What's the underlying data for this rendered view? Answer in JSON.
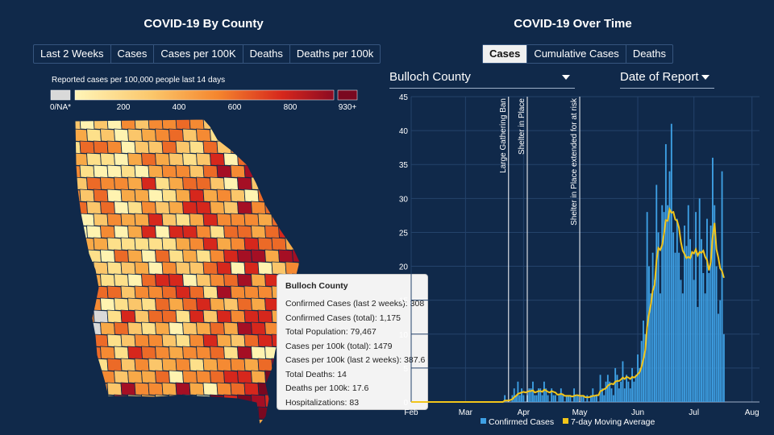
{
  "left_panel": {
    "title": "COVID-19 By County",
    "buttons": [
      "Last 2 Weeks",
      "Cases",
      "Cases per 100K",
      "Deaths",
      "Deaths per 100k"
    ],
    "legend": {
      "title": "Reported cases per 100,000 people last 14 days",
      "na_label": "0/NA*",
      "ticks": [
        "200",
        "400",
        "600",
        "800"
      ],
      "max_label": "930+",
      "colors": {
        "na": "#d9d9d9",
        "low": "#fff3b0",
        "mid": "#f7a43a",
        "high": "#d6271c",
        "max": "#7a0820"
      }
    },
    "tooltip": {
      "title": "Bulloch County",
      "lines": [
        "Confirmed Cases (last 2 weeks): 308",
        "Confirmed Cases (total): 1,175",
        "Total Population: 79,467",
        "Cases per 100k (total): 1479",
        "Cases per 100k (last 2 weeks): 387.6",
        "Total Deaths: 14",
        "Deaths per 100k: 17.6",
        "Hospitalizations: 83"
      ]
    }
  },
  "right_panel": {
    "title": "COVID-19 Over Time",
    "tabs": [
      {
        "label": "Cases",
        "active": true
      },
      {
        "label": "Cumulative Cases",
        "active": false
      },
      {
        "label": "Deaths",
        "active": false
      }
    ],
    "county_select": "Bulloch County",
    "date_select": "Date of Report"
  },
  "chart_data": {
    "type": "bar",
    "ylim": [
      0,
      45
    ],
    "yticks": [
      0,
      5,
      10,
      15,
      20,
      25,
      30,
      35,
      40,
      45
    ],
    "xticks": [
      "Feb",
      "Mar",
      "Apr",
      "May",
      "Jun",
      "Jul",
      "Aug"
    ],
    "x_range": [
      "2020-02-01",
      "2020-08-05"
    ],
    "grid": true,
    "legend_position": "bottom",
    "annotations": [
      {
        "label": "Large Gathering Ban",
        "date": "2020-03-24"
      },
      {
        "label": "Shelter in Place",
        "date": "2020-04-03"
      },
      {
        "label": "Shelter in Place extended for at risk",
        "date": "2020-05-01"
      }
    ],
    "series": [
      {
        "name": "Confirmed Cases",
        "color": "#3ea0e4",
        "x_start": "2020-03-20",
        "values": [
          0,
          0,
          1,
          0,
          0,
          0,
          1,
          2,
          1,
          3,
          1,
          2,
          1,
          0,
          1,
          2,
          2,
          3,
          1,
          1,
          2,
          2,
          1,
          3,
          2,
          1,
          0,
          2,
          1,
          1,
          0,
          1,
          2,
          1,
          0,
          1,
          1,
          1,
          0,
          2,
          1,
          1,
          0,
          1,
          1,
          0,
          1,
          0,
          1,
          2,
          1,
          1,
          0,
          4,
          2,
          1,
          3,
          4,
          3,
          2,
          1,
          5,
          4,
          2,
          3,
          6,
          2,
          4,
          3,
          2,
          5,
          3,
          4,
          7,
          5,
          9,
          12,
          10,
          28,
          20,
          16,
          22,
          18,
          32,
          25,
          16,
          29,
          28,
          38,
          29,
          34,
          41,
          25,
          22,
          27,
          22,
          18,
          16,
          26,
          23,
          29,
          24,
          22,
          18,
          28,
          14,
          30,
          24,
          19,
          16,
          27,
          19,
          26,
          36,
          29,
          20,
          13,
          15,
          34,
          10
        ]
      },
      {
        "name": "7-day Moving Average",
        "color": "#f2c51a",
        "x_start": "2020-03-20",
        "values": [
          0,
          0,
          0.2,
          0.2,
          0.2,
          0.3,
          0.4,
          0.7,
          0.9,
          1.2,
          1.3,
          1.4,
          1.5,
          1.4,
          1.5,
          1.6,
          1.6,
          1.7,
          1.4,
          1.5,
          1.6,
          1.6,
          1.5,
          1.8,
          1.7,
          1.5,
          1.4,
          1.6,
          1.5,
          1.4,
          1.1,
          1.1,
          1.2,
          1.1,
          0.9,
          0.9,
          0.9,
          0.9,
          0.8,
          0.9,
          1,
          1,
          0.9,
          0.9,
          0.9,
          0.7,
          0.7,
          0.7,
          0.8,
          0.9,
          0.9,
          1,
          1,
          1.6,
          1.7,
          1.9,
          2,
          2.4,
          2.6,
          2.7,
          2.6,
          3,
          3.1,
          3.1,
          3.3,
          3.6,
          3.4,
          3.7,
          3.6,
          3.4,
          3.7,
          3.6,
          3.8,
          4.1,
          4.4,
          5.2,
          6.3,
          7.6,
          11,
          13,
          14.4,
          16.4,
          17.2,
          20.9,
          22.7,
          22.4,
          23.1,
          24.7,
          26.8,
          26.7,
          28.4,
          27.9,
          28,
          26.9,
          26.7,
          25.7,
          23.6,
          22.3,
          21.8,
          21.2,
          21.4,
          21.2,
          22.1,
          21.9,
          22.5,
          21.6,
          22.1,
          22,
          22.3,
          21.4,
          20.9,
          19.4,
          20.6,
          24.3,
          26.4,
          22.5,
          21.3,
          19.7,
          19.3,
          18.3
        ]
      }
    ]
  }
}
